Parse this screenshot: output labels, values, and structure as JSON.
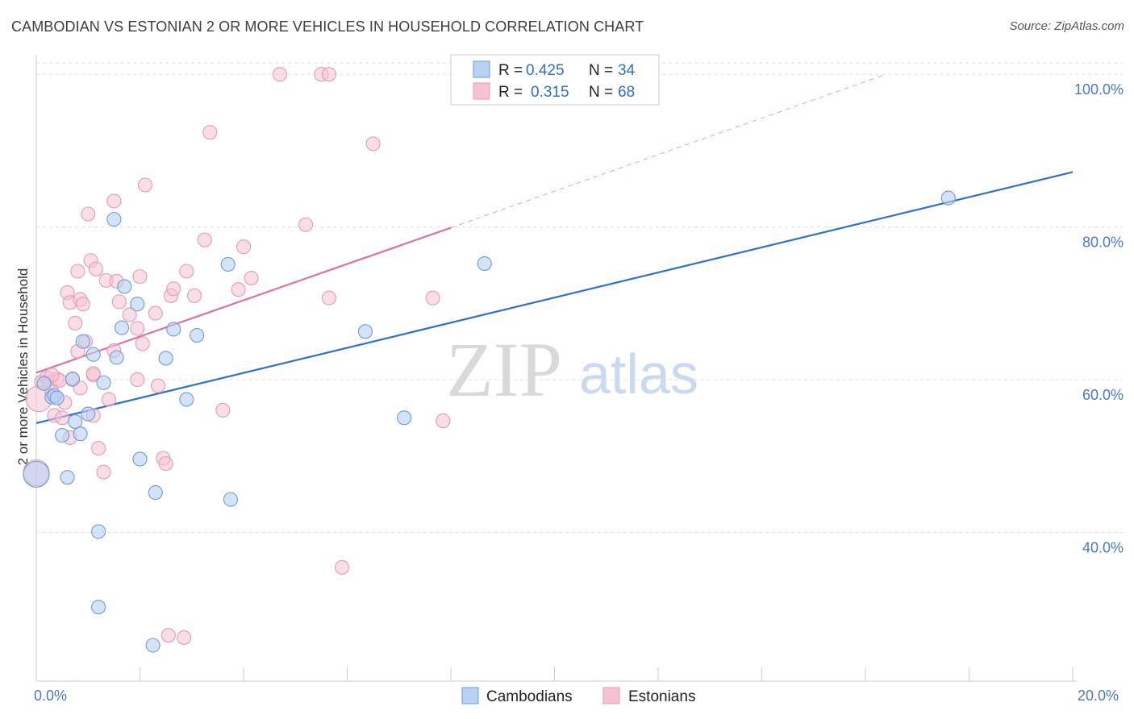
{
  "title": "CAMBODIAN VS ESTONIAN 2 OR MORE VEHICLES IN HOUSEHOLD CORRELATION CHART",
  "source": "Source: ZipAtlas.com",
  "watermark": {
    "zip": "ZIP",
    "atlas": "atlas"
  },
  "colors": {
    "cambodians": "#2f6fd0",
    "estonians": "#e0729a",
    "cambodians_fill": "#b9d1f2",
    "estonians_fill": "#f6c2d3"
  },
  "legend": {
    "cambodians": {
      "r_label": "R =",
      "r_value": "0.425",
      "n_label": "N =",
      "n_value": "34"
    },
    "estonians": {
      "r_label": "R =",
      "r_value": "0.315",
      "n_label": "N =",
      "n_value": "68"
    }
  },
  "bottom_legend": {
    "cambodians": "Cambodians",
    "estonians": "Estonians"
  },
  "chart_data": {
    "type": "scatter",
    "title": "CAMBODIAN VS ESTONIAN 2 OR MORE VEHICLES IN HOUSEHOLD CORRELATION CHART",
    "xlabel": "",
    "ylabel": "2 or more Vehicles in Household",
    "xlim": [
      0,
      20
    ],
    "ylim": [
      20.5,
      101.5
    ],
    "x_tick_labels": [
      "0.0%",
      "20.0%"
    ],
    "y_ticks": [
      40,
      60,
      80,
      100
    ],
    "y_tick_labels": [
      "40.0%",
      "60.0%",
      "80.0%",
      "100.0%"
    ],
    "grid": true,
    "legend_position": "top-center",
    "series": [
      {
        "name": "Cambodians",
        "R": 0.425,
        "N": 34,
        "trend": {
          "x": [
            0,
            20
          ],
          "y": [
            54.3,
            87.2
          ]
        },
        "points": [
          {
            "x": 0.0,
            "y": 47.6,
            "big": true
          },
          {
            "x": 0.15,
            "y": 59.5
          },
          {
            "x": 0.3,
            "y": 57.7
          },
          {
            "x": 0.35,
            "y": 57.9
          },
          {
            "x": 0.5,
            "y": 52.7
          },
          {
            "x": 0.6,
            "y": 47.2
          },
          {
            "x": 0.7,
            "y": 60.1
          },
          {
            "x": 0.75,
            "y": 54.5
          },
          {
            "x": 0.85,
            "y": 52.9
          },
          {
            "x": 0.9,
            "y": 65.0
          },
          {
            "x": 1.0,
            "y": 55.5
          },
          {
            "x": 1.1,
            "y": 63.3
          },
          {
            "x": 1.2,
            "y": 40.1
          },
          {
            "x": 1.3,
            "y": 59.6
          },
          {
            "x": 1.5,
            "y": 81.0
          },
          {
            "x": 1.55,
            "y": 62.9
          },
          {
            "x": 1.65,
            "y": 66.8
          },
          {
            "x": 1.7,
            "y": 72.2
          },
          {
            "x": 1.95,
            "y": 69.9
          },
          {
            "x": 2.0,
            "y": 49.6
          },
          {
            "x": 2.3,
            "y": 45.2
          },
          {
            "x": 2.5,
            "y": 62.8
          },
          {
            "x": 2.65,
            "y": 66.6
          },
          {
            "x": 2.9,
            "y": 57.4
          },
          {
            "x": 3.1,
            "y": 65.8
          },
          {
            "x": 3.7,
            "y": 75.1
          },
          {
            "x": 3.75,
            "y": 44.3
          },
          {
            "x": 6.35,
            "y": 66.3
          },
          {
            "x": 7.1,
            "y": 55.0
          },
          {
            "x": 8.65,
            "y": 75.2
          },
          {
            "x": 17.6,
            "y": 83.8
          },
          {
            "x": 1.2,
            "y": 30.2
          },
          {
            "x": 2.25,
            "y": 25.2
          },
          {
            "x": 0.4,
            "y": 57.6
          }
        ]
      },
      {
        "name": "Estonians",
        "R": 0.315,
        "N": 68,
        "trend": {
          "x": [
            0,
            8.0
          ],
          "y": [
            60.9,
            79.9
          ]
        },
        "trend_dashed": {
          "x": [
            8.0,
            16.4
          ],
          "y": [
            79.9,
            100.0
          ]
        },
        "points": [
          {
            "x": 0.0,
            "y": 47.8,
            "big": true
          },
          {
            "x": 0.05,
            "y": 57.5,
            "big": true
          },
          {
            "x": 0.1,
            "y": 59.7
          },
          {
            "x": 0.2,
            "y": 60.3
          },
          {
            "x": 0.25,
            "y": 59.6
          },
          {
            "x": 0.3,
            "y": 58.4
          },
          {
            "x": 0.35,
            "y": 55.3
          },
          {
            "x": 0.4,
            "y": 60.1
          },
          {
            "x": 0.45,
            "y": 59.9
          },
          {
            "x": 0.5,
            "y": 55.0
          },
          {
            "x": 0.55,
            "y": 57.0
          },
          {
            "x": 0.6,
            "y": 71.4
          },
          {
            "x": 0.65,
            "y": 70.1
          },
          {
            "x": 0.65,
            "y": 52.4
          },
          {
            "x": 0.7,
            "y": 60.0
          },
          {
            "x": 0.75,
            "y": 67.4
          },
          {
            "x": 0.8,
            "y": 63.7
          },
          {
            "x": 0.8,
            "y": 74.2
          },
          {
            "x": 0.85,
            "y": 70.5
          },
          {
            "x": 0.85,
            "y": 58.9
          },
          {
            "x": 0.9,
            "y": 69.9
          },
          {
            "x": 0.95,
            "y": 65.0
          },
          {
            "x": 1.0,
            "y": 81.7
          },
          {
            "x": 1.05,
            "y": 75.6
          },
          {
            "x": 1.1,
            "y": 55.3
          },
          {
            "x": 1.1,
            "y": 60.6
          },
          {
            "x": 1.15,
            "y": 74.5
          },
          {
            "x": 1.2,
            "y": 51.0
          },
          {
            "x": 1.3,
            "y": 47.9
          },
          {
            "x": 1.35,
            "y": 73.0
          },
          {
            "x": 1.4,
            "y": 57.4
          },
          {
            "x": 1.5,
            "y": 83.4
          },
          {
            "x": 1.5,
            "y": 63.8
          },
          {
            "x": 1.55,
            "y": 72.9
          },
          {
            "x": 1.6,
            "y": 70.2
          },
          {
            "x": 1.8,
            "y": 68.5
          },
          {
            "x": 1.95,
            "y": 66.7
          },
          {
            "x": 1.95,
            "y": 60.0
          },
          {
            "x": 2.0,
            "y": 73.5
          },
          {
            "x": 2.05,
            "y": 64.7
          },
          {
            "x": 2.1,
            "y": 85.5
          },
          {
            "x": 2.3,
            "y": 68.7
          },
          {
            "x": 2.35,
            "y": 59.2
          },
          {
            "x": 2.45,
            "y": 49.7
          },
          {
            "x": 2.5,
            "y": 49.0
          },
          {
            "x": 2.6,
            "y": 71.0
          },
          {
            "x": 2.65,
            "y": 71.9
          },
          {
            "x": 2.9,
            "y": 74.2
          },
          {
            "x": 3.05,
            "y": 71.0
          },
          {
            "x": 3.25,
            "y": 78.3
          },
          {
            "x": 3.35,
            "y": 92.4
          },
          {
            "x": 3.6,
            "y": 56.0
          },
          {
            "x": 3.9,
            "y": 71.8
          },
          {
            "x": 4.0,
            "y": 77.4
          },
          {
            "x": 4.15,
            "y": 73.3
          },
          {
            "x": 4.7,
            "y": 100.0
          },
          {
            "x": 5.2,
            "y": 80.3
          },
          {
            "x": 5.5,
            "y": 100.0
          },
          {
            "x": 5.65,
            "y": 100.0
          },
          {
            "x": 5.65,
            "y": 70.7
          },
          {
            "x": 5.9,
            "y": 35.4
          },
          {
            "x": 6.5,
            "y": 90.9
          },
          {
            "x": 7.65,
            "y": 70.7
          },
          {
            "x": 7.85,
            "y": 54.6
          },
          {
            "x": 2.55,
            "y": 26.5
          },
          {
            "x": 2.85,
            "y": 26.2
          },
          {
            "x": 0.3,
            "y": 60.6
          },
          {
            "x": 1.1,
            "y": 60.8
          }
        ]
      }
    ]
  }
}
